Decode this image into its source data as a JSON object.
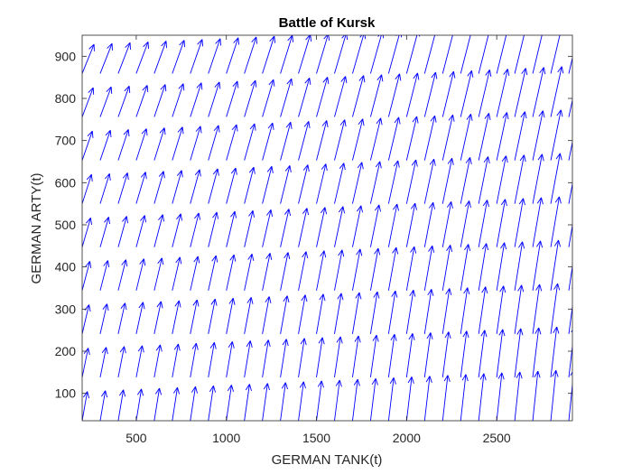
{
  "chart_data": {
    "type": "quiver",
    "title": "Battle of Kursk",
    "xlabel": "GERMAN TANK(t)",
    "ylabel": "GERMAN ARTY(t)",
    "xlim": [
      200,
      2920
    ],
    "ylim": [
      35,
      950
    ],
    "xticks": [
      500,
      1000,
      1500,
      2000,
      2500
    ],
    "yticks": [
      100,
      200,
      300,
      400,
      500,
      600,
      700,
      800,
      900
    ],
    "grid": false,
    "legend": "none",
    "arrow_color": "#0000ff",
    "field": {
      "x_start": 200,
      "x_step": 100,
      "nx": 28,
      "y_start": 35,
      "y_step": 103,
      "ny": 10,
      "dx_base": 0.3,
      "dx_gain_per_y": 0.0005,
      "dy_base": 1.7,
      "dy_gain_per_x": 0.0005,
      "arrow_scale": 18
    }
  }
}
